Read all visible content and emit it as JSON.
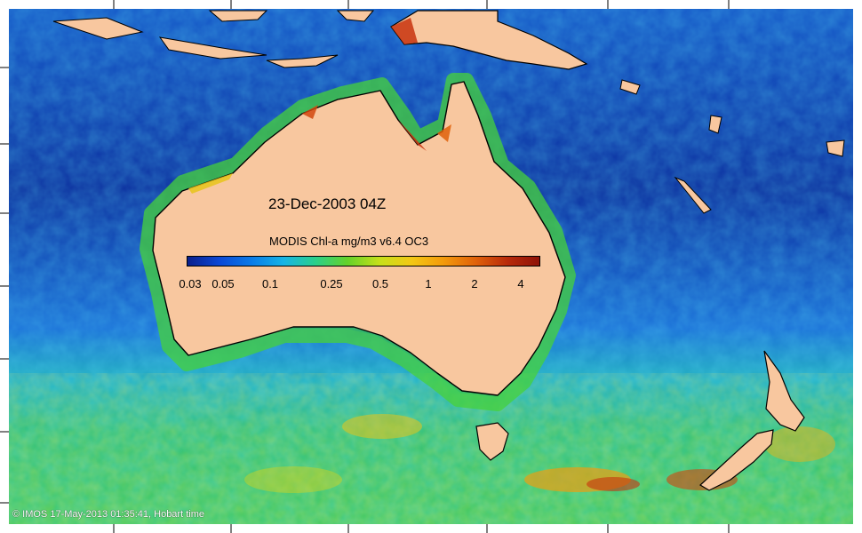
{
  "map": {
    "date_label": "23-Dec-2003 04Z",
    "product_label": "MODIS Chl-a mg/m3 v6.4 OC3",
    "credit": "© IMOS 17-May-2013 01:35:41, Hobart time",
    "colorbar": {
      "ticks": [
        "0.03",
        "0.05",
        "0.1",
        "0.25",
        "0.5",
        "1",
        "2",
        "4"
      ],
      "colors": [
        "#0a1f8c",
        "#0b48d6",
        "#0a7be8",
        "#16b4e6",
        "#2ad08a",
        "#64d22a",
        "#c6e01a",
        "#f3c814",
        "#f39a0c",
        "#e0620a",
        "#b82a0a",
        "#8e1208"
      ]
    },
    "colors": {
      "land": "#f8c79f",
      "coast": "#000000",
      "deep_ocean": "#0b2e9e",
      "mid_ocean": "#1a6fd8",
      "southern_ocean": "#35c173",
      "bloom": "#ecd21a",
      "high": "#c8320d"
    }
  }
}
